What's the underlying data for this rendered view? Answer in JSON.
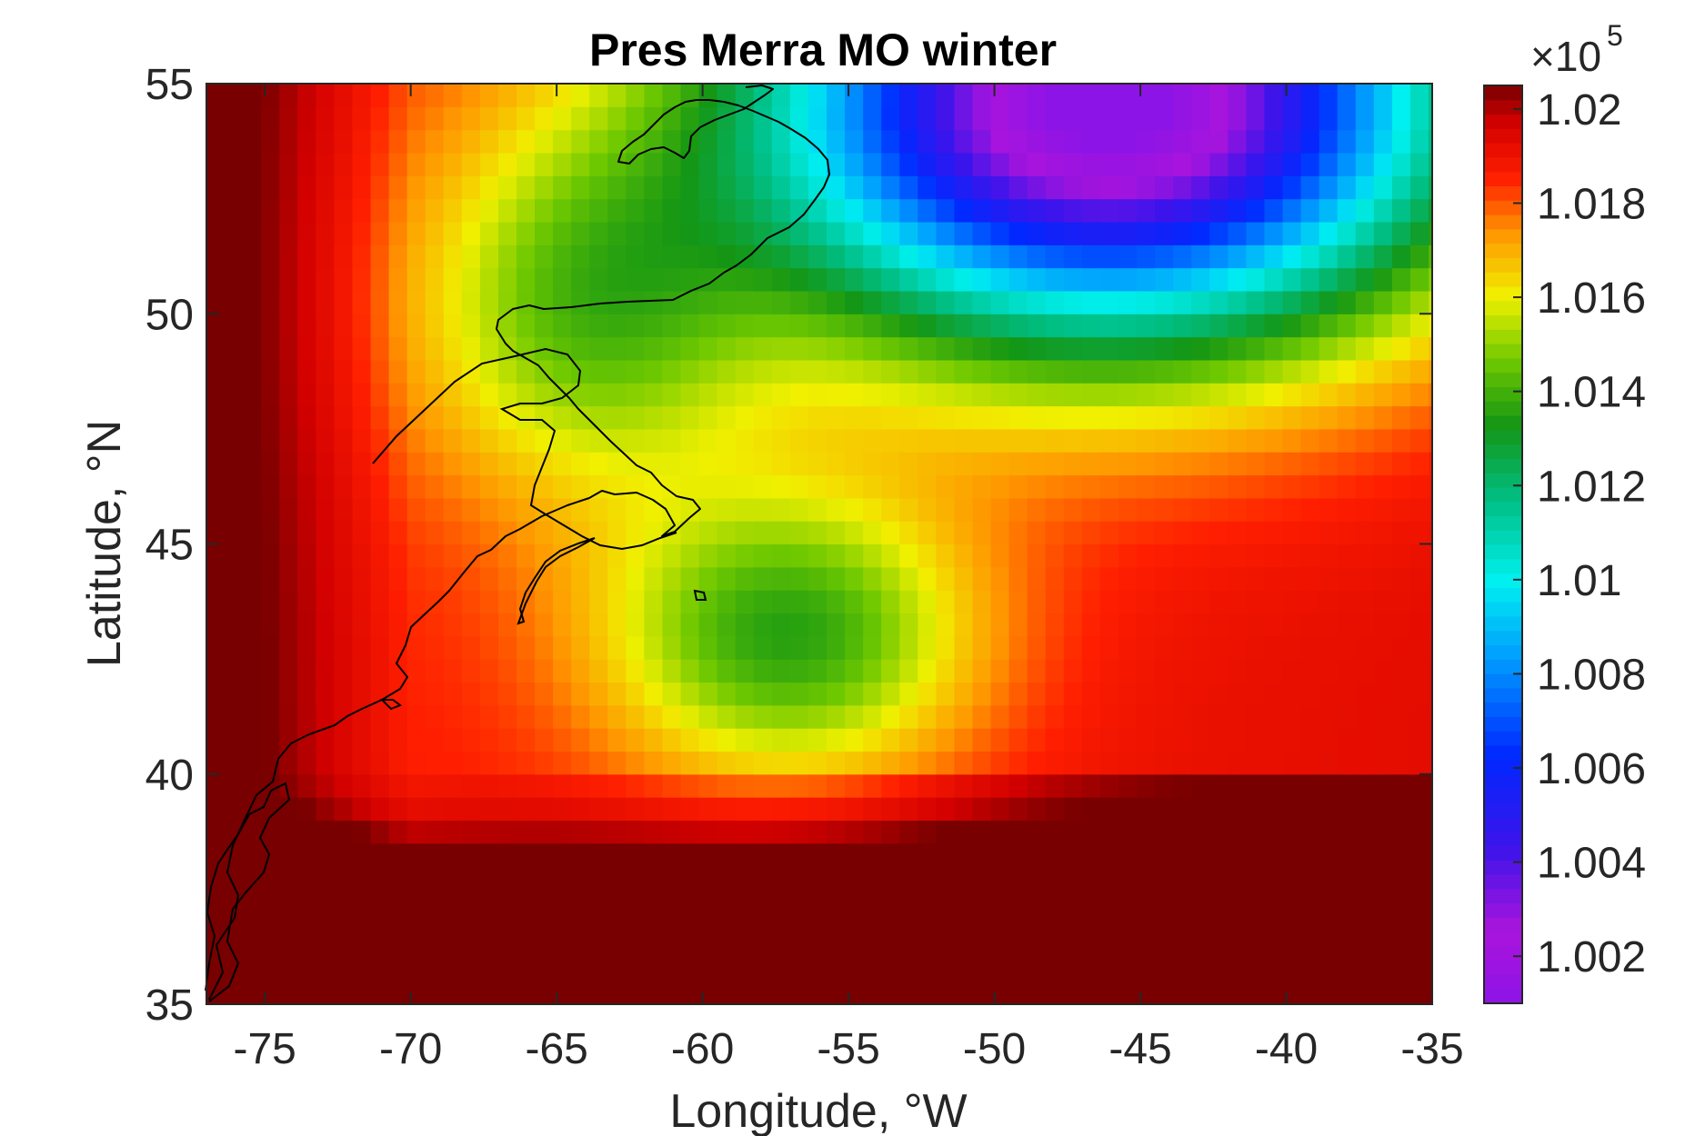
{
  "chart_data": {
    "type": "heatmap",
    "title": "Pres Merra MO winter",
    "xlabel": "Longitude, °W",
    "ylabel": "Latitude, °N",
    "xlim": [
      -77,
      -35
    ],
    "ylim": [
      35,
      55
    ],
    "x_ticks": [
      -75,
      -70,
      -65,
      -60,
      -55,
      -50,
      -45,
      -40,
      -35
    ],
    "x_tick_labels": [
      "-75",
      "-70",
      "-65",
      "-60",
      "-55",
      "-50",
      "-45",
      "-40",
      "-35"
    ],
    "y_ticks": [
      35,
      40,
      45,
      50,
      55
    ],
    "y_tick_labels": [
      "35",
      "40",
      "45",
      "50",
      "55"
    ],
    "colormap": "jet-like (purple → blue → cyan → green → yellow → red → dark red)",
    "colorbar": {
      "range": [
        1.001,
        1.0205
      ],
      "ticks": [
        1.002,
        1.004,
        1.006,
        1.008,
        1.01,
        1.012,
        1.014,
        1.016,
        1.018,
        1.02
      ],
      "tick_labels": [
        "1.002",
        "1.004",
        "1.006",
        "1.008",
        "1.01",
        "1.012",
        "1.014",
        "1.016",
        "1.018",
        "1.02"
      ],
      "multiplier_base": "×10",
      "multiplier_exp": "5"
    },
    "grid": false,
    "features": [
      {
        "description": "coastline overlay of northeastern North America",
        "color": "#000000"
      },
      {
        "description": "low-pressure minimum (~1.001e5 Pa)",
        "lon": -47,
        "lat": 53.5
      },
      {
        "description": "high-pressure region (~1.02e5 Pa)",
        "lon": -36,
        "lat": 35.5
      },
      {
        "description": "green trough (~1.012e5 Pa) extending south",
        "lon": -56,
        "lat": 42.5
      }
    ]
  }
}
